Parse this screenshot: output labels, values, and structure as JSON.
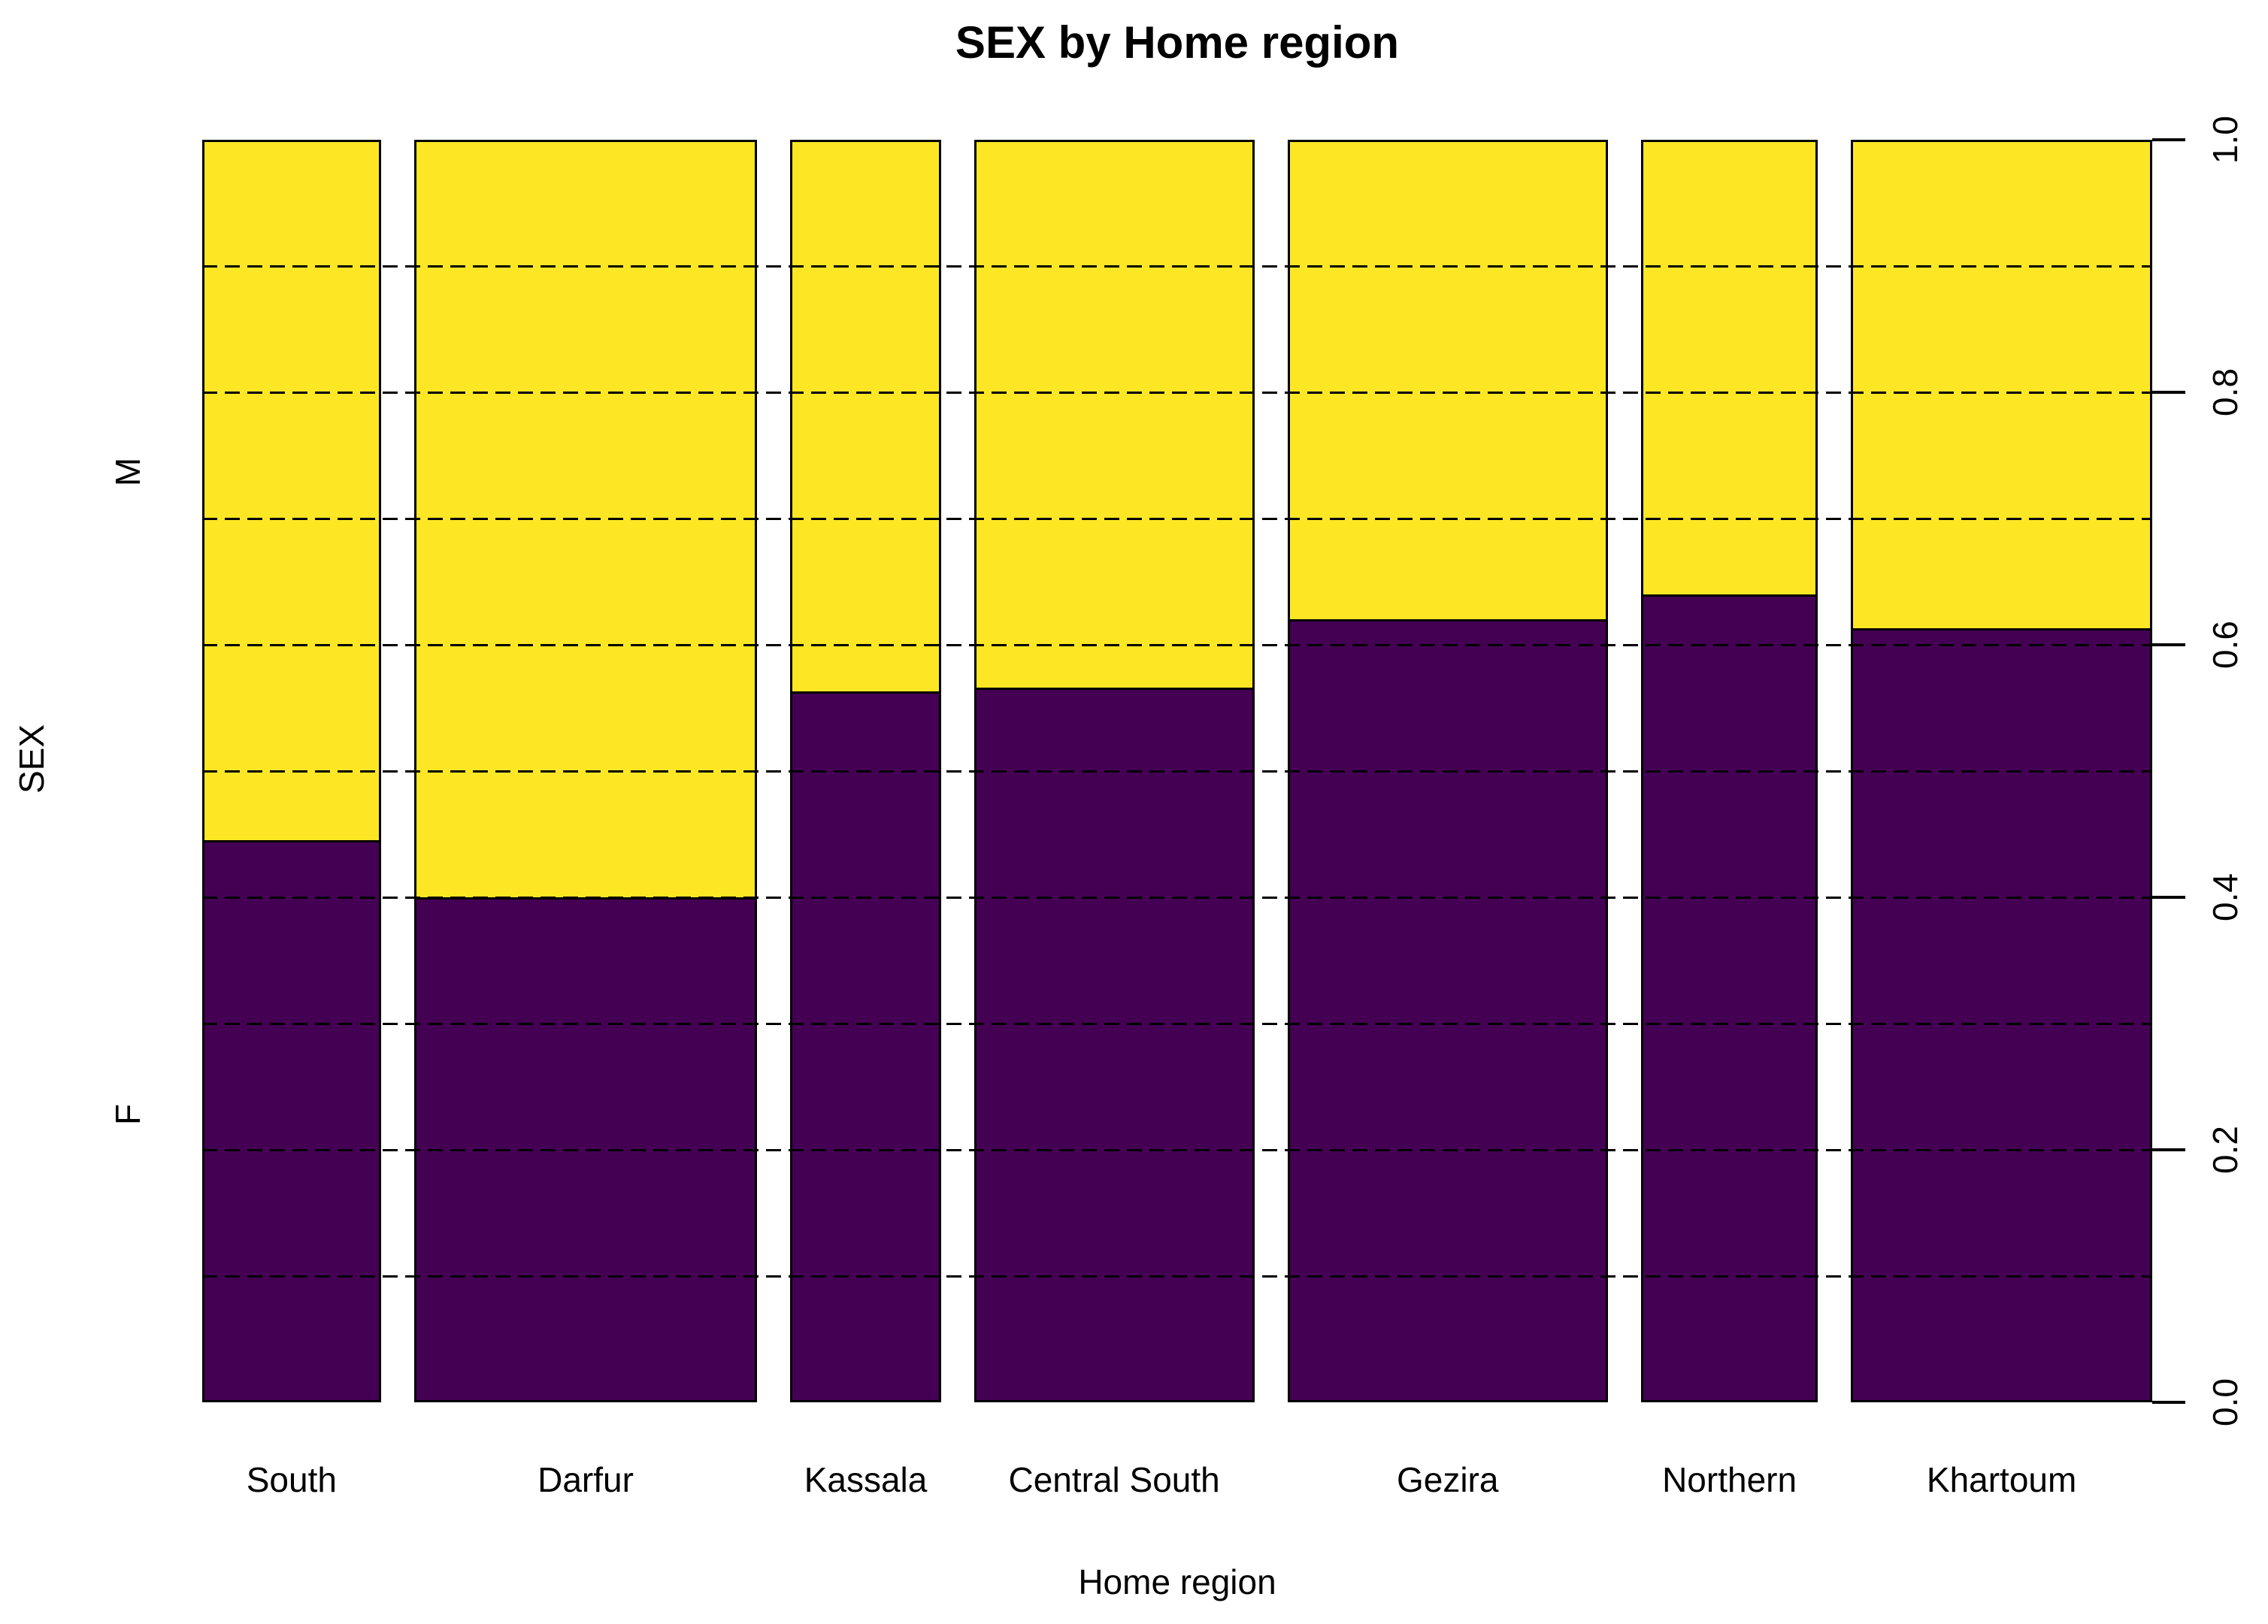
{
  "title": "SEX by Home region",
  "y_axis": {
    "label": "SEX",
    "tick_labels": [
      "0.0",
      "0.2",
      "0.4",
      "0.6",
      "0.8",
      "1.0"
    ],
    "category_labels": {
      "bottom": "F",
      "top": "M"
    }
  },
  "x_axis": {
    "label": "Home region"
  },
  "colors": {
    "F": "#440154",
    "M": "#FDE725",
    "border": "#000000",
    "gridline": "#000000",
    "background": "#ffffff",
    "text": "#000000"
  },
  "chart_data": {
    "type": "mosaic",
    "title": "SEX by Home region",
    "xlabel": "Home region",
    "ylabel": "SEX",
    "categories": [
      "South",
      "Darfur",
      "Kassala",
      "Central South",
      "Gezira",
      "Northern",
      "Khartoum"
    ],
    "category_width_fractions": [
      0.102,
      0.196,
      0.086,
      0.16,
      0.183,
      0.101,
      0.172
    ],
    "series": [
      {
        "name": "F",
        "color": "#440154",
        "values": [
          0.445,
          0.4,
          0.563,
          0.566,
          0.62,
          0.64,
          0.613
        ]
      },
      {
        "name": "M",
        "color": "#FDE725",
        "values": [
          0.555,
          0.6,
          0.437,
          0.434,
          0.38,
          0.36,
          0.387
        ]
      }
    ],
    "ylim": [
      0,
      1
    ],
    "yticks": [
      0,
      0.2,
      0.4,
      0.6,
      0.8,
      1
    ],
    "gridlines": [
      0.1,
      0.2,
      0.3,
      0.4,
      0.5,
      0.6,
      0.7,
      0.8,
      0.9
    ],
    "grid_style": "dashed",
    "legend_position": "none"
  }
}
